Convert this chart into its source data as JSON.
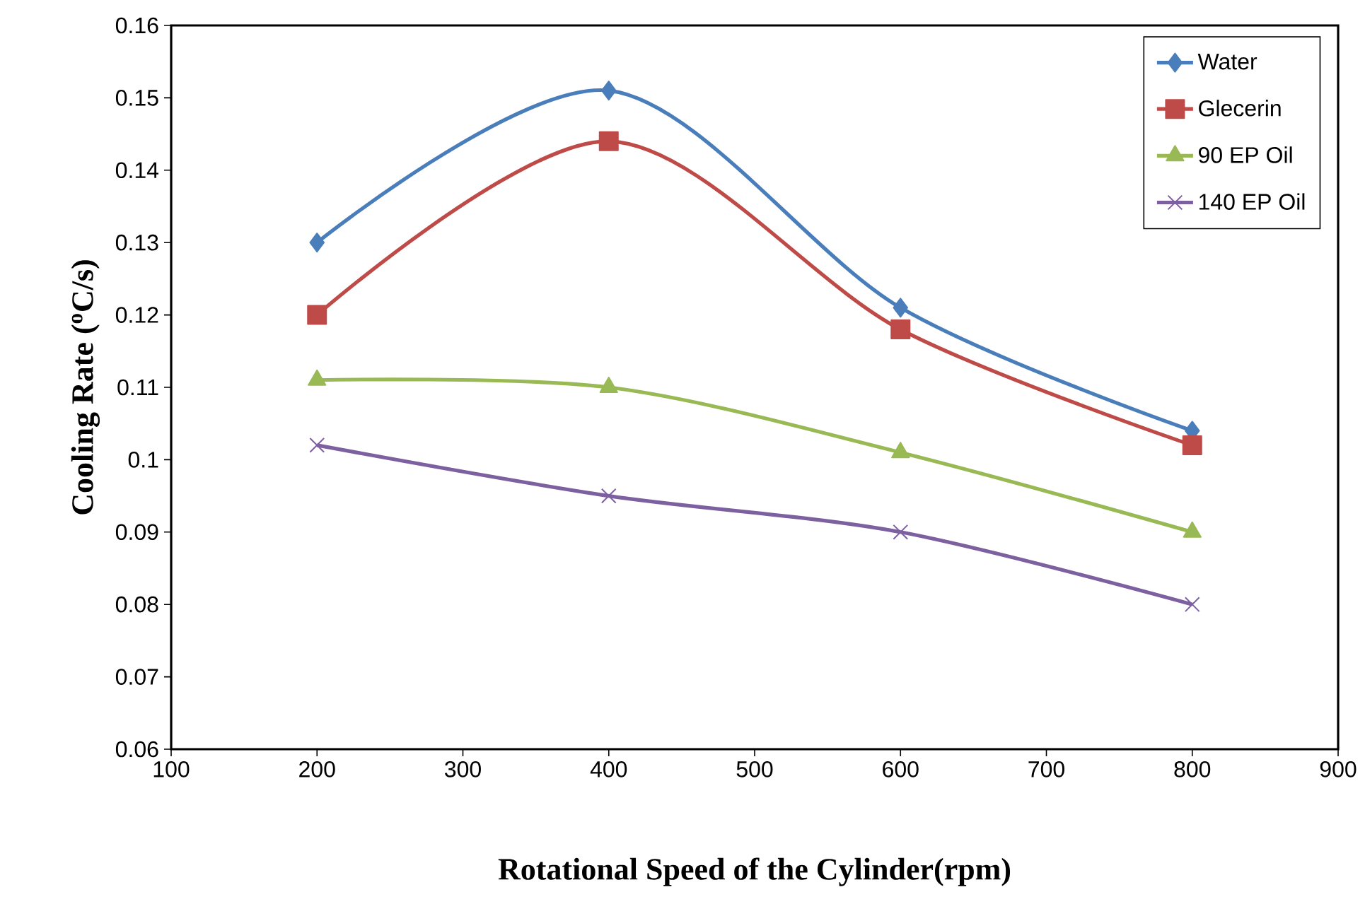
{
  "chart_data": {
    "type": "line",
    "xlabel": "Rotational Speed of the Cylinder(rpm)",
    "ylabel": "Cooling Rate ($^{o}$C/s)",
    "x": [
      200,
      400,
      600,
      800
    ],
    "series": [
      {
        "name": "Water",
        "color": "#4a7ebb",
        "marker": "diamond",
        "values": [
          0.13,
          0.151,
          0.121,
          0.104
        ]
      },
      {
        "name": "Glecerin",
        "color": "#be4b48",
        "marker": "square",
        "values": [
          0.12,
          0.144,
          0.118,
          0.102
        ]
      },
      {
        "name": "90 EP Oil",
        "color": "#98b954",
        "marker": "triangle",
        "values": [
          0.111,
          0.11,
          0.101,
          0.09
        ]
      },
      {
        "name": "140 EP Oil",
        "color": "#7d60a0",
        "marker": "cross",
        "values": [
          0.102,
          0.095,
          0.09,
          0.08
        ]
      }
    ],
    "xlim": [
      100,
      900
    ],
    "xticks": [
      100,
      200,
      300,
      400,
      500,
      600,
      700,
      800,
      900
    ],
    "ylim": [
      0.06,
      0.16
    ],
    "yticks": [
      0.06,
      0.07,
      0.08,
      0.09,
      0.1,
      0.11,
      0.12,
      0.13,
      0.14,
      0.15,
      0.16
    ],
    "grid": false,
    "legend": "top right",
    "line_style": "solid"
  }
}
